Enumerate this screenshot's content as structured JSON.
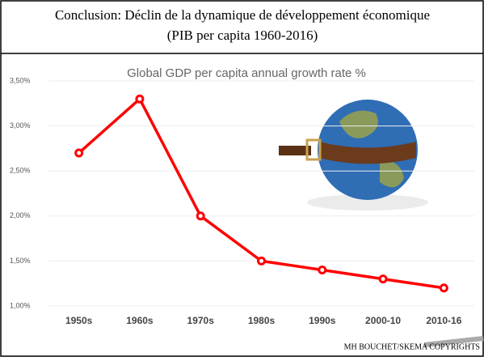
{
  "header": {
    "title_lines": [
      "Conclusion: Déclin de la dynamique de développement économique",
      "(PIB per capita 1960-2016)"
    ]
  },
  "footer": "MH BOUCHET/SKEMA COPYRIGHTS",
  "chart_data": {
    "type": "line",
    "title": "Global GDP per capita annual growth rate %",
    "categories": [
      "1950s",
      "1960s",
      "1970s",
      "1980s",
      "1990s",
      "2000-10",
      "2010-16"
    ],
    "values": [
      2.7,
      3.3,
      2.0,
      1.5,
      1.4,
      1.3,
      1.2
    ],
    "color": "#ff0000",
    "ylim": [
      1.0,
      3.5
    ],
    "yticks": [
      {
        "value": 1.0,
        "label": "1,00%"
      },
      {
        "value": 1.5,
        "label": "1,50%"
      },
      {
        "value": 2.0,
        "label": "2,00%"
      },
      {
        "value": 2.5,
        "label": "2,50%"
      },
      {
        "value": 3.0,
        "label": "3,00%"
      },
      {
        "value": 3.5,
        "label": "3,50%"
      }
    ],
    "grid": true
  }
}
